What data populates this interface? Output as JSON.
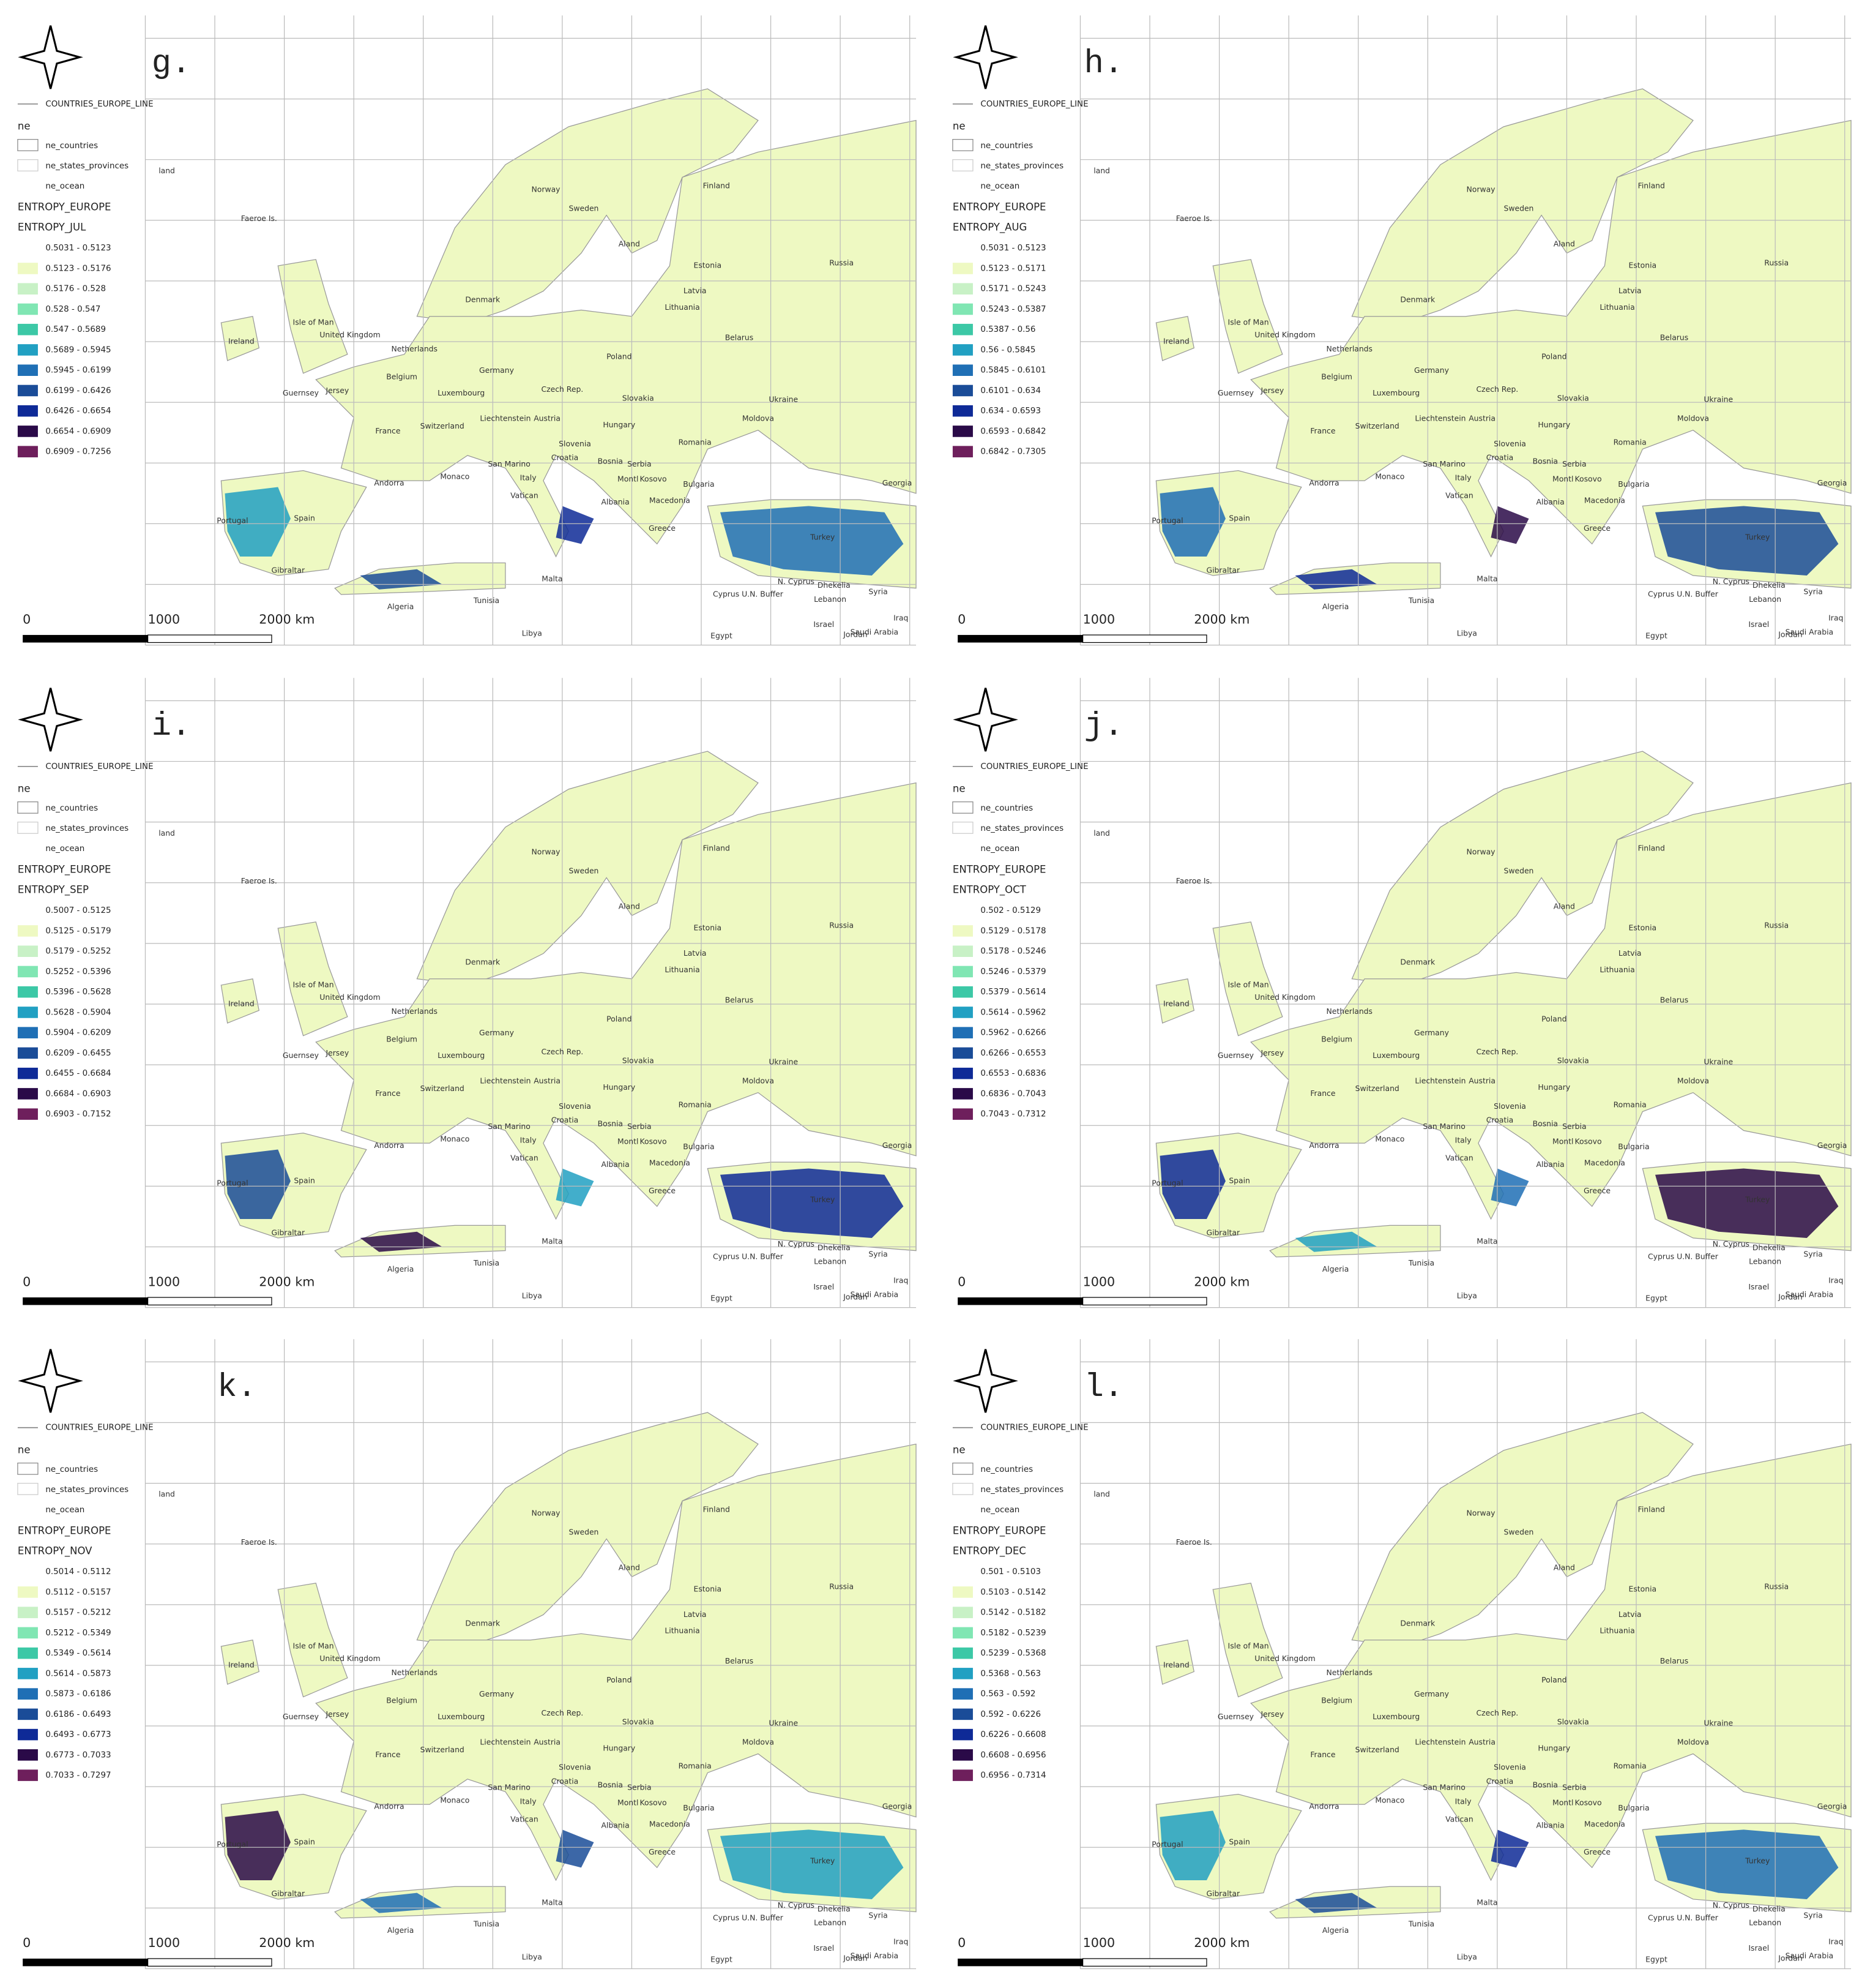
{
  "legend_layers": [
    "COUNTRIES_EUROPE_LINE",
    "ne",
    "ne_countries",
    "ne_states_provinces",
    "ne_ocean",
    "ENTROPY_EUROPE"
  ],
  "class_colors": [
    "#ffffff",
    "#eef9c2",
    "#c8f1c6",
    "#80e6b3",
    "#3cc8a6",
    "#21a0c2",
    "#1f6fb5",
    "#1a4c98",
    "#0e2a97",
    "#2a0a48",
    "#6e1f5c"
  ],
  "scale_bar": {
    "labels": [
      "0",
      "1000",
      "2000 km"
    ]
  },
  "map_labels": [
    "land",
    "Norway",
    "Sweden",
    "Finland",
    "Faeroe Is.",
    "Aland",
    "Estonia",
    "Russia",
    "Latvia",
    "Lithuania",
    "Denmark",
    "Isle of Man",
    "United Kingdom",
    "Ireland",
    "Netherlands",
    "Belarus",
    "Germany",
    "Poland",
    "Belgium",
    "Guernsey",
    "Jersey",
    "Luxembourg",
    "Czech Rep.",
    "Slovakia",
    "Ukraine",
    "Liechtenstein",
    "Austria",
    "Moldova",
    "Hungary",
    "Switzerland",
    "France",
    "Slovenia",
    "Romania",
    "Croatia",
    "San Marino",
    "Bosnia",
    "Serbia",
    "Monaco",
    "Andorra",
    "Italy",
    "Montl",
    "Kosovo",
    "Bulgaria",
    "Georgia",
    "Albania",
    "Macedonia",
    "Vatican",
    "Portugal",
    "Spain",
    "Greece",
    "Turkey",
    "Gibraltar",
    "Malta",
    "N. Cyprus",
    "Dhekelia",
    "Cyprus U.N. Buffer",
    "Syria",
    "Lebanon",
    "Algeria",
    "Tunisia",
    "Libya",
    "Egypt",
    "Israel",
    "Jordan",
    "Iraq",
    "Saudi Arabia"
  ],
  "panels": [
    {
      "letter": "g.",
      "layer": "ENTROPY_JUL",
      "classes": [
        "0.5031 - 0.5123",
        "0.5123 - 0.5176",
        "0.5176 - 0.528",
        "0.528 - 0.547",
        "0.547 - 0.5689",
        "0.5689 - 0.5945",
        "0.5945 - 0.6199",
        "0.6199 - 0.6426",
        "0.6426 - 0.6654",
        "0.6654 - 0.6909",
        "0.6909 - 0.7256"
      ]
    },
    {
      "letter": "h.",
      "layer": "ENTROPY_AUG",
      "classes": [
        "0.5031 - 0.5123",
        "0.5123 - 0.5171",
        "0.5171 - 0.5243",
        "0.5243 - 0.5387",
        "0.5387 - 0.56",
        "0.56 - 0.5845",
        "0.5845 - 0.6101",
        "0.6101 - 0.634",
        "0.634 - 0.6593",
        "0.6593 - 0.6842",
        "0.6842 - 0.7305"
      ]
    },
    {
      "letter": "i.",
      "layer": "ENTROPY_SEP",
      "classes": [
        "0.5007 - 0.5125",
        "0.5125 - 0.5179",
        "0.5179 - 0.5252",
        "0.5252 - 0.5396",
        "0.5396 - 0.5628",
        "0.5628 - 0.5904",
        "0.5904 - 0.6209",
        "0.6209 - 0.6455",
        "0.6455 - 0.6684",
        "0.6684 - 0.6903",
        "0.6903 - 0.7152"
      ]
    },
    {
      "letter": "j.",
      "layer": "ENTROPY_OCT",
      "classes": [
        "0.502 - 0.5129",
        "0.5129 - 0.5178",
        "0.5178 - 0.5246",
        "0.5246 - 0.5379",
        "0.5379 - 0.5614",
        "0.5614 - 0.5962",
        "0.5962 - 0.6266",
        "0.6266 - 0.6553",
        "0.6553 - 0.6836",
        "0.6836 - 0.7043",
        "0.7043 - 0.7312"
      ]
    },
    {
      "letter": "k.",
      "layer": "ENTROPY_NOV",
      "classes": [
        "0.5014 - 0.5112",
        "0.5112 - 0.5157",
        "0.5157 - 0.5212",
        "0.5212 - 0.5349",
        "0.5349 - 0.5614",
        "0.5614 - 0.5873",
        "0.5873 - 0.6186",
        "0.6186 - 0.6493",
        "0.6493 - 0.6773",
        "0.6773 - 0.7033",
        "0.7033 - 0.7297"
      ]
    },
    {
      "letter": "l.",
      "layer": "ENTROPY_DEC",
      "classes": [
        "0.501 - 0.5103",
        "0.5103 - 0.5142",
        "0.5142 - 0.5182",
        "0.5182 - 0.5239",
        "0.5239 - 0.5368",
        "0.5368 - 0.563",
        "0.563 - 0.592",
        "0.592 - 0.6226",
        "0.6226 - 0.6608",
        "0.6608 - 0.6956",
        "0.6956 - 0.7314"
      ]
    }
  ]
}
